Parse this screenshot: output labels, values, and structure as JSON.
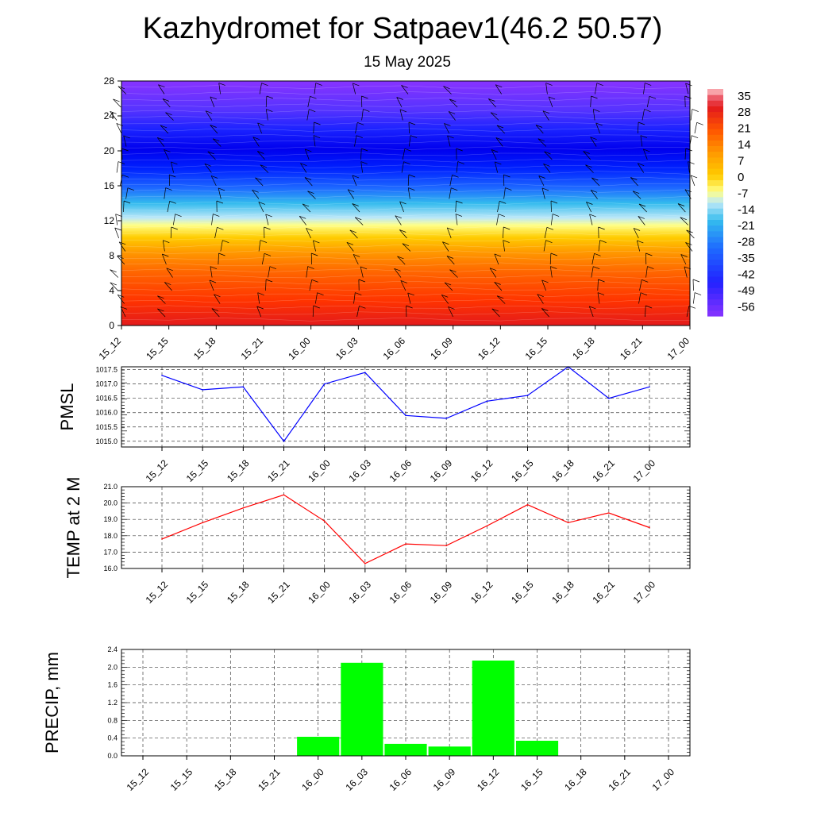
{
  "title": "Kazhydromet for Satpaev1(46.2 50.57)",
  "subtitle": "15 May 2025",
  "colors": {
    "pmsl_line": "#0000ff",
    "temp_line": "#ff0000",
    "precip_bar": "#00ff00"
  },
  "chart_data": [
    {
      "type": "heatmap",
      "name": "vertical cross-section",
      "x": [
        "15_12",
        "15_15",
        "15_18",
        "15_21",
        "16_00",
        "16_03",
        "16_06",
        "16_09",
        "16_12",
        "16_15",
        "16_18",
        "16_21",
        "17_00"
      ],
      "yticks": [
        0,
        4,
        8,
        12,
        16,
        20,
        24,
        28
      ],
      "ylim": [
        0,
        28
      ],
      "colorbar_labels": [
        "35",
        "28",
        "21",
        "14",
        "7",
        "0",
        "-7",
        "-14",
        "-21",
        "-28",
        "-35",
        "-42",
        "-49",
        "-56"
      ],
      "colorbar_range": [
        -60,
        38
      ],
      "note_overlay": "wind barbs"
    },
    {
      "type": "line",
      "ylabel": "PMSL",
      "x": [
        "15_12",
        "15_15",
        "15_18",
        "15_21",
        "16_00",
        "16_03",
        "16_06",
        "16_09",
        "16_12",
        "16_15",
        "16_18",
        "16_21",
        "17_00"
      ],
      "values": [
        1017.3,
        1016.8,
        1016.9,
        1015.0,
        1017.0,
        1017.4,
        1015.9,
        1015.8,
        1016.4,
        1016.6,
        1017.6,
        1016.5,
        1016.9
      ],
      "yticks": [
        "1015.0",
        "1015.5",
        "1016.0",
        "1016.5",
        "1017.0",
        "1017.5"
      ],
      "ylim": [
        1014.8,
        1017.6
      ]
    },
    {
      "type": "line",
      "ylabel": "TEMP at 2 M",
      "x": [
        "15_12",
        "15_15",
        "15_18",
        "15_21",
        "16_00",
        "16_03",
        "16_06",
        "16_09",
        "16_12",
        "16_15",
        "16_18",
        "16_21",
        "17_00"
      ],
      "values": [
        17.8,
        18.8,
        19.7,
        20.5,
        18.9,
        16.3,
        17.5,
        17.4,
        18.6,
        19.9,
        18.8,
        19.4,
        18.5
      ],
      "yticks": [
        "16.0",
        "17.0",
        "18.0",
        "19.0",
        "20.0",
        "21.0"
      ],
      "ylim": [
        16.0,
        21.0
      ]
    },
    {
      "type": "bar",
      "ylabel": "PRECIP, mm",
      "x": [
        "15_12",
        "15_15",
        "15_18",
        "15_21",
        "16_00",
        "16_03",
        "16_06",
        "16_09",
        "16_12",
        "16_15",
        "16_18",
        "16_21",
        "17_00"
      ],
      "values": [
        0,
        0,
        0,
        0,
        0.43,
        2.1,
        0.27,
        0.21,
        2.15,
        0.34,
        0,
        0,
        0
      ],
      "yticks": [
        "0.0",
        "0.4",
        "0.8",
        "1.2",
        "1.6",
        "2.0",
        "2.4"
      ],
      "ylim": [
        0,
        2.4
      ]
    }
  ]
}
